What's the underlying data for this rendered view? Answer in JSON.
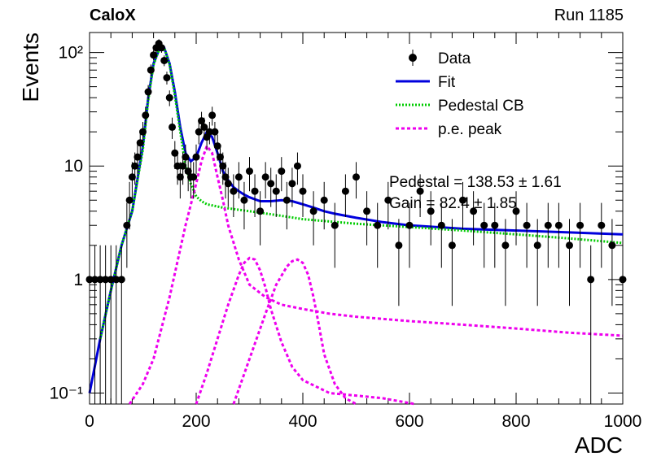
{
  "header": {
    "experiment": "CaloX",
    "run": "Run 1185"
  },
  "chart_data": {
    "type": "scatter",
    "title": "",
    "xlabel": "ADC",
    "ylabel": "Events",
    "xlim": [
      0,
      1000
    ],
    "ylim": [
      0.08,
      150
    ],
    "yscale": "log",
    "x_ticks": [
      0,
      200,
      400,
      600,
      800,
      1000
    ],
    "y_ticks": [
      {
        "value": 0.1,
        "label": "10⁻¹"
      },
      {
        "value": 1,
        "label": "1"
      },
      {
        "value": 10,
        "label": "10"
      },
      {
        "value": 100,
        "label": "10²"
      }
    ],
    "legend_position": "top-right",
    "legend": [
      {
        "label": "Data",
        "color": "#000000",
        "style": "marker"
      },
      {
        "label": "Fit",
        "color": "#0000dd",
        "style": "solid"
      },
      {
        "label": "Pedestal CB",
        "color": "#00cc00",
        "style": "dotted"
      },
      {
        "label": "p.e. peak",
        "color": "#ee00ee",
        "style": "dashed"
      }
    ],
    "stats_text": [
      "Pedestal = 138.53 ± 1.61",
      "Gain = 82.4 ± 1.85"
    ],
    "series": [
      {
        "name": "Data",
        "x": [
          0,
          10,
          20,
          30,
          40,
          50,
          60,
          70,
          75,
          80,
          85,
          90,
          95,
          100,
          105,
          110,
          115,
          120,
          125,
          130,
          135,
          140,
          145,
          150,
          155,
          160,
          165,
          170,
          175,
          180,
          185,
          190,
          195,
          200,
          205,
          210,
          215,
          220,
          225,
          230,
          235,
          240,
          245,
          250,
          255,
          260,
          270,
          280,
          290,
          300,
          310,
          320,
          330,
          340,
          350,
          360,
          370,
          380,
          390,
          400,
          420,
          440,
          460,
          480,
          500,
          520,
          540,
          560,
          580,
          600,
          620,
          640,
          660,
          680,
          700,
          720,
          740,
          760,
          780,
          800,
          820,
          840,
          860,
          880,
          900,
          920,
          940,
          960,
          980,
          1000
        ],
        "y": [
          1,
          1,
          1,
          1,
          1,
          1,
          1,
          3,
          5,
          8,
          10,
          12,
          16,
          20,
          28,
          45,
          70,
          95,
          110,
          120,
          110,
          85,
          60,
          40,
          22,
          13,
          10,
          8,
          10,
          12,
          9,
          8,
          8,
          12,
          20,
          25,
          22,
          18,
          20,
          28,
          20,
          15,
          12,
          10,
          8,
          7,
          6,
          8,
          5,
          9,
          6,
          4,
          8,
          7,
          6,
          9,
          5,
          7,
          10,
          6,
          4,
          5,
          3,
          6,
          8,
          4,
          3,
          5,
          2,
          3,
          6,
          4,
          3,
          2,
          5,
          4,
          3,
          3,
          2,
          4,
          3,
          2,
          3,
          3,
          2,
          3,
          1,
          3,
          2,
          1
        ]
      },
      {
        "name": "Fit",
        "x": [
          0,
          20,
          40,
          60,
          80,
          100,
          110,
          120,
          130,
          140,
          150,
          160,
          170,
          180,
          190,
          200,
          210,
          220,
          230,
          240,
          250,
          260,
          270,
          280,
          290,
          300,
          320,
          340,
          360,
          380,
          400,
          420,
          440,
          460,
          500,
          550,
          600,
          700,
          800,
          900,
          1000
        ],
        "y": [
          0.1,
          0.3,
          0.8,
          2,
          4,
          15,
          40,
          80,
          105,
          110,
          80,
          45,
          22,
          13,
          11,
          12,
          16,
          20,
          18,
          13,
          9,
          7.5,
          6.5,
          6,
          5.6,
          5.3,
          4.9,
          4.9,
          5,
          4.9,
          4.6,
          4.3,
          4,
          3.8,
          3.5,
          3.2,
          3,
          2.8,
          2.7,
          2.6,
          2.5
        ]
      },
      {
        "name": "Pedestal CB",
        "x": [
          20,
          40,
          60,
          80,
          100,
          110,
          120,
          130,
          140,
          150,
          160,
          170,
          180,
          190,
          200,
          210,
          220,
          250,
          300,
          350,
          400,
          500,
          600,
          700,
          800,
          900,
          1000
        ],
        "y": [
          0.3,
          0.8,
          2,
          4,
          14,
          38,
          78,
          105,
          110,
          78,
          42,
          20,
          10,
          7,
          5.4,
          4.9,
          4.6,
          4.3,
          4,
          3.7,
          3.4,
          3.1,
          2.9,
          2.7,
          2.5,
          2.3,
          2.1
        ]
      },
      {
        "name": "p.e. peak",
        "x": [
          75,
          100,
          120,
          150,
          180,
          200,
          210,
          220,
          230,
          240,
          250,
          260,
          280,
          300,
          330,
          360,
          400,
          450,
          500,
          600,
          700,
          800,
          900,
          1000
        ],
        "y": [
          0.08,
          0.12,
          0.2,
          0.7,
          3,
          7,
          11,
          15,
          13,
          8,
          5,
          3,
          1.5,
          0.9,
          0.7,
          0.6,
          0.55,
          0.5,
          0.47,
          0.43,
          0.4,
          0.37,
          0.34,
          0.32
        ]
      },
      {
        "name": "p.e. peak",
        "x": [
          200,
          220,
          240,
          260,
          280,
          290,
          300,
          310,
          320,
          330,
          340,
          360,
          380,
          400,
          450,
          500,
          550,
          610
        ],
        "y": [
          0.08,
          0.15,
          0.3,
          0.6,
          1.1,
          1.4,
          1.55,
          1.5,
          1.2,
          0.85,
          0.55,
          0.28,
          0.17,
          0.13,
          0.1,
          0.095,
          0.09,
          0.08
        ]
      },
      {
        "name": "p.e. peak",
        "x": [
          270,
          300,
          330,
          350,
          370,
          380,
          390,
          400,
          410,
          420,
          430,
          440,
          460,
          480,
          500
        ],
        "y": [
          0.08,
          0.2,
          0.5,
          0.9,
          1.3,
          1.45,
          1.5,
          1.4,
          1.1,
          0.7,
          0.4,
          0.22,
          0.12,
          0.09,
          0.08
        ]
      }
    ]
  }
}
